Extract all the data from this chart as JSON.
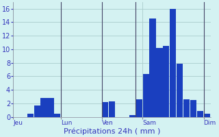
{
  "title": "Précipitations 24h ( mm )",
  "bar_color": "#1a3fbf",
  "background_color": "#d4f2f2",
  "grid_color": "#aacccc",
  "text_color": "#3333bb",
  "ylim": [
    0,
    17
  ],
  "yticks": [
    0,
    2,
    4,
    6,
    8,
    10,
    12,
    14,
    16
  ],
  "values": [
    0,
    0,
    0.5,
    1.7,
    2.8,
    2.8,
    0.5,
    0,
    0,
    0,
    0,
    0,
    0,
    2.2,
    2.3,
    0,
    0,
    0.3,
    2.6,
    6.4,
    14.5,
    10.2,
    10.5,
    16.0,
    7.9,
    2.6,
    2.5,
    0.9,
    0.5
  ],
  "n_bars": 29,
  "vline_positions": [
    7,
    13,
    18,
    28
  ],
  "tick_bar_indices": [
    0,
    7,
    13,
    19,
    28
  ],
  "tick_labels": [
    "Jeu",
    "Lun",
    "Ven",
    "Sam",
    "Dim"
  ]
}
